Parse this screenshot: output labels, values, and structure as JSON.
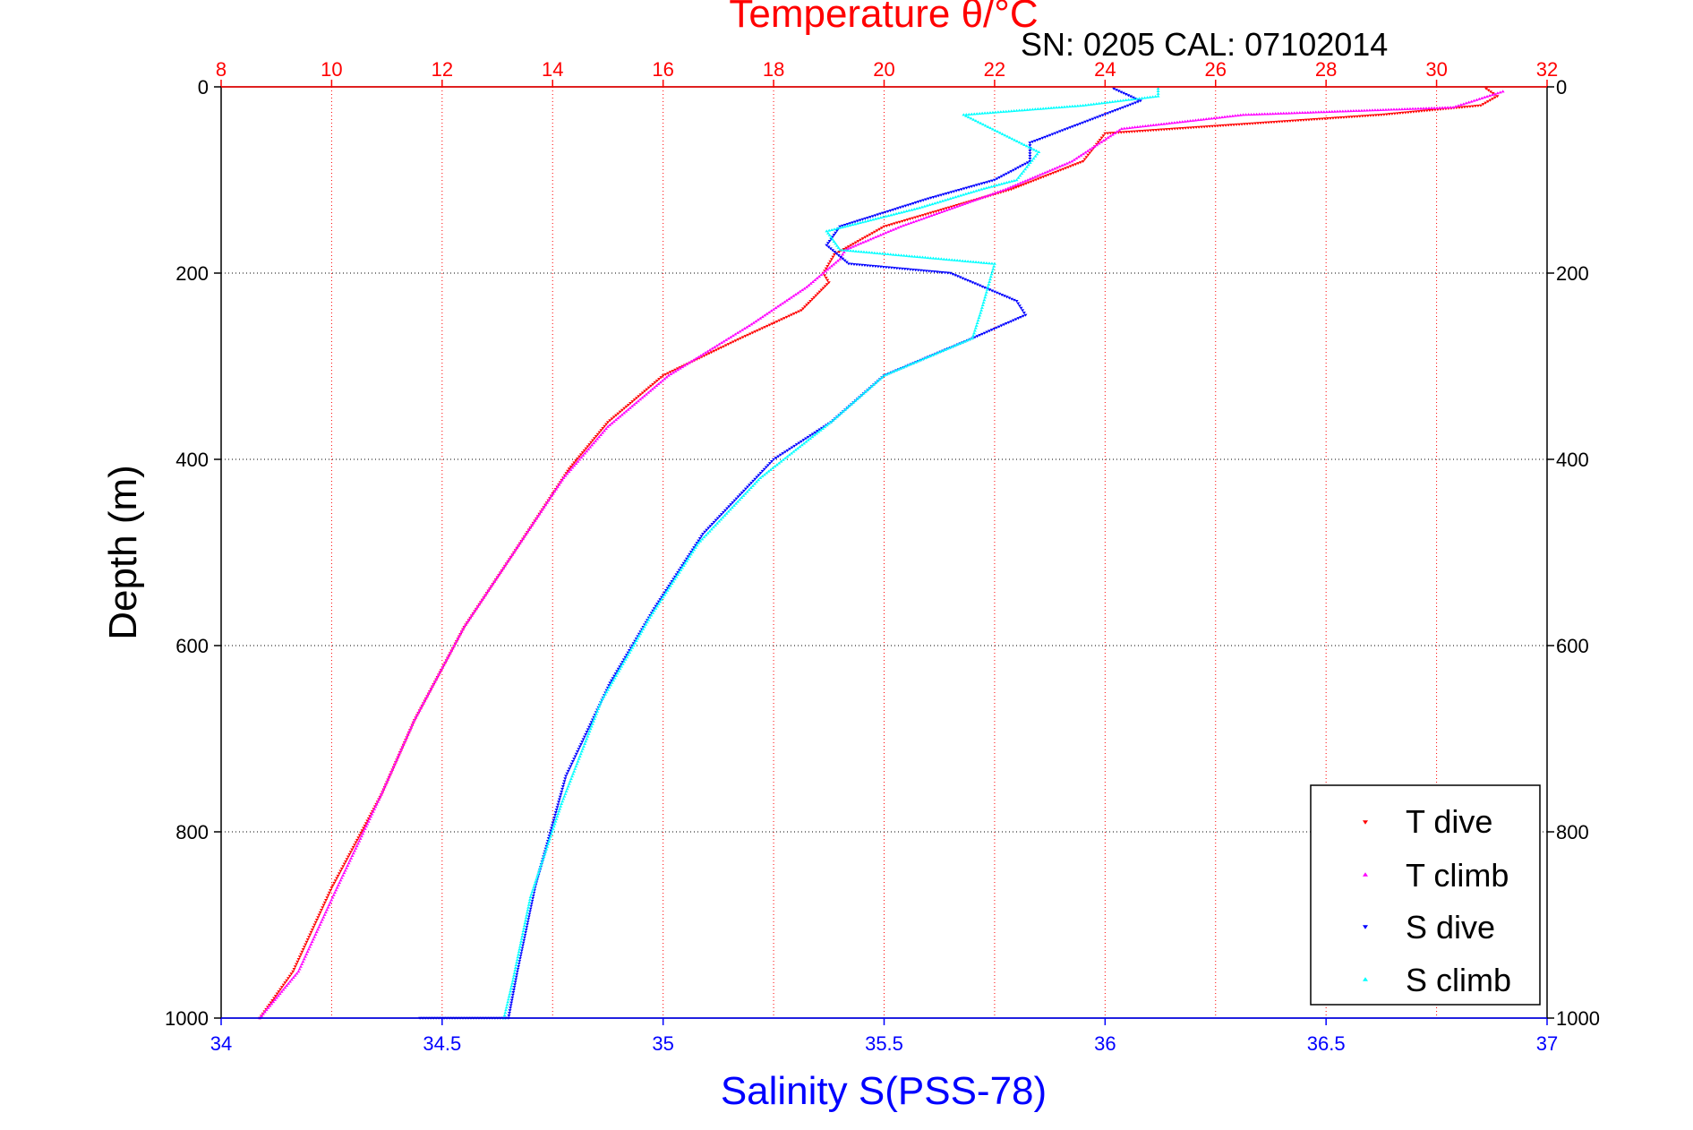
{
  "chart_data": {
    "type": "scatter",
    "title": "Temperature θ/°C",
    "subtitle": "SN: 0205  CAL: 07102014",
    "ylabel": "Depth (m)",
    "xlabel": "Salinity S(PSS-78)",
    "ylim": [
      0,
      1000
    ],
    "y_reversed": true,
    "y_ticks": [
      "0",
      "200",
      "400",
      "600",
      "800",
      "1000"
    ],
    "temperature_axis": {
      "position": "top",
      "lim": [
        8,
        32
      ],
      "ticks": [
        "8",
        "10",
        "12",
        "14",
        "16",
        "18",
        "20",
        "22",
        "24",
        "26",
        "28",
        "30",
        "32"
      ],
      "color": "#ff0000"
    },
    "salinity_axis": {
      "position": "bottom",
      "lim": [
        34,
        37
      ],
      "ticks": [
        "34",
        "34.5",
        "35",
        "35.5",
        "36",
        "36.5",
        "37"
      ],
      "color": "#0000ff"
    },
    "grid": true,
    "legend_position": "bottom-right",
    "series": [
      {
        "name": "T dive",
        "axis": "temperature",
        "marker": "triangle-down",
        "color": "#ff0000",
        "x": [
          30.9,
          31.1,
          30.8,
          29.0,
          24.0,
          23.6,
          22.3,
          20.0,
          19.1,
          18.9,
          19.0,
          18.5,
          17.4,
          16.0,
          15.0,
          14.3,
          13.3,
          12.4,
          11.5,
          10.9,
          10.0,
          9.3,
          8.7
        ],
        "y": [
          2,
          10,
          20,
          30,
          50,
          80,
          110,
          150,
          180,
          200,
          210,
          240,
          270,
          310,
          360,
          410,
          500,
          580,
          680,
          760,
          860,
          950,
          1000
        ]
      },
      {
        "name": "T climb",
        "axis": "temperature",
        "marker": "triangle-up",
        "color": "#ff00ff",
        "x": [
          31.2,
          30.3,
          26.5,
          24.3,
          23.4,
          22.2,
          20.3,
          19.3,
          19.2,
          18.9,
          18.6,
          17.6,
          16.1,
          15.0,
          14.2,
          13.3,
          12.4,
          11.5,
          10.9,
          10.1,
          9.4,
          8.7
        ],
        "y": [
          5,
          22,
          30,
          45,
          80,
          110,
          150,
          175,
          185,
          200,
          215,
          255,
          310,
          365,
          420,
          500,
          580,
          680,
          760,
          860,
          950,
          1000
        ]
      },
      {
        "name": "S dive",
        "axis": "salinity",
        "marker": "triangle-down",
        "color": "#0000ff",
        "x": [
          36.02,
          36.08,
          35.83,
          35.83,
          35.75,
          35.6,
          35.4,
          35.37,
          35.42,
          35.65,
          35.8,
          35.82,
          35.7,
          35.5,
          35.38,
          35.25,
          35.09,
          34.98,
          34.88,
          34.78,
          34.71,
          34.67,
          34.65,
          34.45
        ],
        "y": [
          2,
          15,
          60,
          80,
          100,
          120,
          150,
          170,
          190,
          200,
          230,
          245,
          270,
          310,
          360,
          400,
          480,
          560,
          640,
          740,
          860,
          950,
          1000,
          1000
        ]
      },
      {
        "name": "S climb",
        "axis": "salinity",
        "marker": "triangle-up",
        "color": "#00ffff",
        "x": [
          36.12,
          36.12,
          35.95,
          35.68,
          35.85,
          35.8,
          35.72,
          35.58,
          35.37,
          35.4,
          35.75,
          35.72,
          35.7,
          35.5,
          35.38,
          35.22,
          35.08,
          34.97,
          34.86,
          34.77,
          34.7,
          34.66,
          34.64
        ],
        "y": [
          2,
          10,
          20,
          30,
          70,
          100,
          110,
          130,
          155,
          175,
          190,
          240,
          270,
          310,
          360,
          420,
          490,
          570,
          660,
          770,
          870,
          960,
          1000
        ]
      }
    ]
  }
}
